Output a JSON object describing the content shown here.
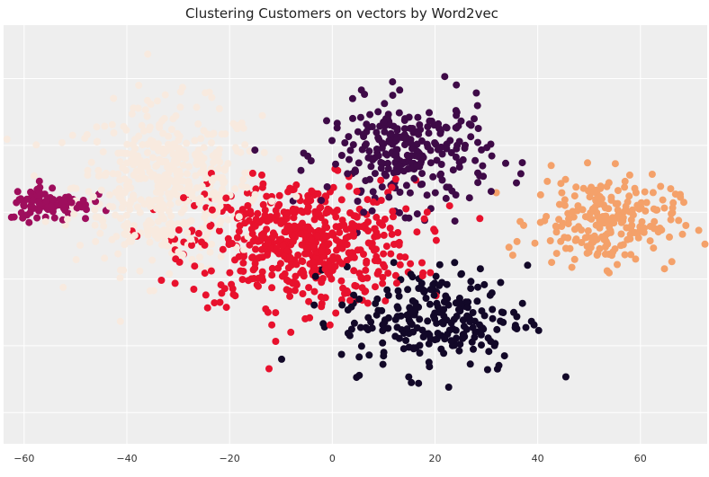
{
  "chart_data": {
    "type": "scatter",
    "title": "Clustering Customers on vectors by Word2vec",
    "xlabel": "",
    "ylabel": "",
    "xlim": [
      -64,
      73
    ],
    "ylim": [
      -42,
      52
    ],
    "x_ticks": [
      -60,
      -40,
      -20,
      0,
      20,
      40,
      60
    ],
    "x_tick_labels": [
      "−60",
      "−40",
      "−20",
      "0",
      "20",
      "40",
      "60"
    ],
    "y_grid_values": [
      40,
      25,
      10,
      -5,
      -20,
      -35
    ],
    "grid": true,
    "legend": "none",
    "background_color": "#eeeeee",
    "grid_color": "#ffffff",
    "clusters": [
      {
        "color": "#f8eadf",
        "center": [
          -32,
          16
        ],
        "spread": [
          9,
          9
        ],
        "count": 480
      },
      {
        "color": "#e8112d",
        "center": [
          -6,
          3
        ],
        "spread": [
          11,
          7
        ],
        "count": 560
      },
      {
        "color": "#3e0a47",
        "center": [
          15,
          23
        ],
        "spread": [
          8,
          6
        ],
        "count": 280
      },
      {
        "color": "#f4a16a",
        "center": [
          53,
          8
        ],
        "spread": [
          7,
          5
        ],
        "count": 230
      },
      {
        "color": "#120828",
        "center": [
          20,
          -14
        ],
        "spread": [
          9,
          6
        ],
        "count": 240
      },
      {
        "color": "#9e0e5d",
        "center": [
          -55,
          12
        ],
        "spread": [
          4,
          2
        ],
        "count": 90
      }
    ]
  }
}
